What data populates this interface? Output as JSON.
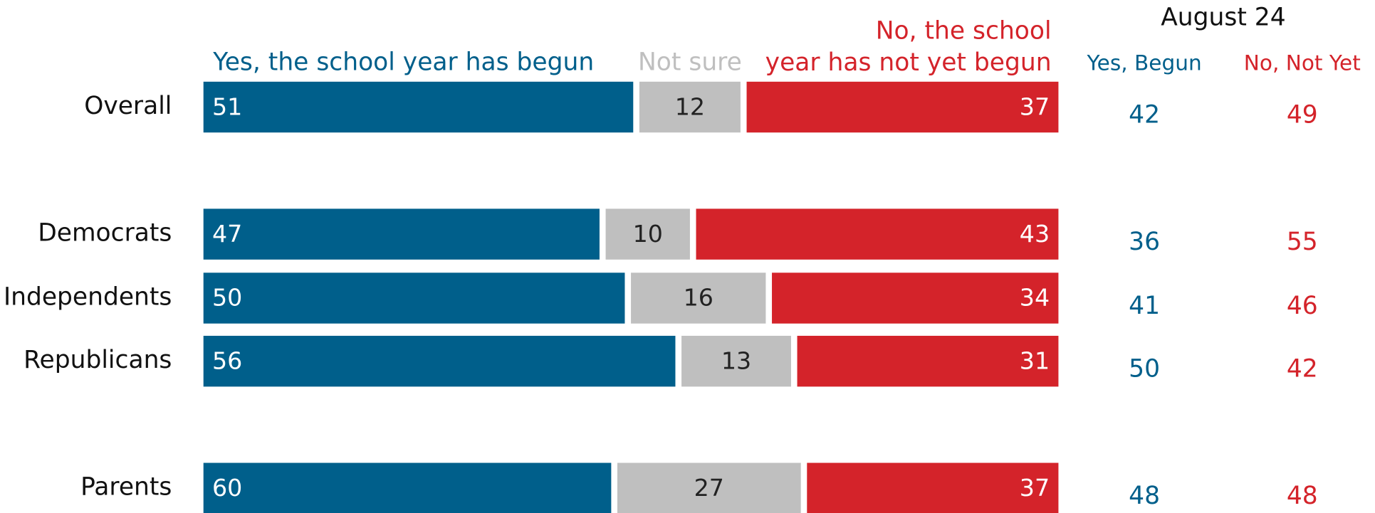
{
  "chart_data": {
    "type": "bar",
    "orientation": "horizontal",
    "stacked": true,
    "categories": [
      "Overall",
      "Democrats",
      "Independents",
      "Republicans",
      "Parents"
    ],
    "series": [
      {
        "name": "Yes, the school year has begun",
        "color": "#005f8b",
        "values": [
          51,
          47,
          50,
          56,
          60
        ]
      },
      {
        "name": "Not sure",
        "color": "#bfbfbf",
        "values": [
          12,
          10,
          16,
          13,
          27
        ]
      },
      {
        "name": "No, the school year has not yet begun",
        "color": "#d4232a",
        "values": [
          37,
          43,
          34,
          31,
          37
        ]
      }
    ],
    "comparison": {
      "title": "August 24",
      "series": [
        {
          "name": "Yes, Begun",
          "color": "#005f8b",
          "values": [
            42,
            36,
            41,
            50,
            48
          ]
        },
        {
          "name": "No, Not Yet",
          "color": "#d4232a",
          "values": [
            49,
            55,
            46,
            42,
            48
          ]
        }
      ]
    }
  }
}
